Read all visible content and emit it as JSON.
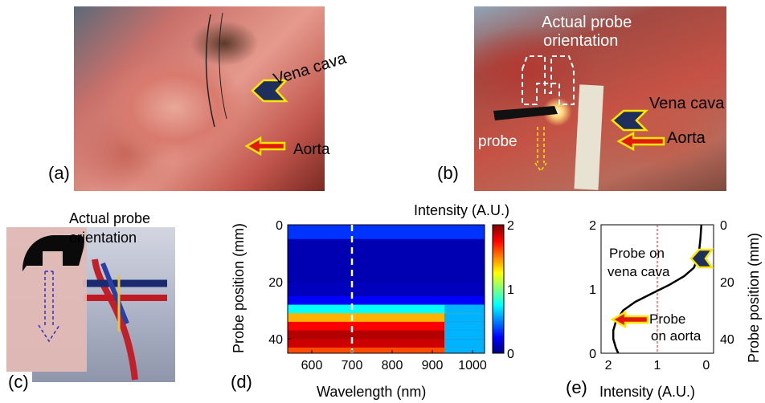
{
  "panels": {
    "a": {
      "label": "(a)",
      "annotations": {
        "vena_cava": "Vena cava",
        "aorta": "Aorta"
      }
    },
    "b": {
      "label": "(b)",
      "annotations": {
        "probe_orientation_line1": "Actual probe",
        "probe_orientation_line2": "orientation",
        "vena_cava": "Vena cava",
        "aorta": "Aorta",
        "probe": "probe"
      }
    },
    "c": {
      "label": "(c)",
      "annotations": {
        "probe_orientation_line1": "Actual probe",
        "probe_orientation_line2": "orientation"
      }
    },
    "d": {
      "label": "(d)"
    },
    "e": {
      "label": "(e)",
      "annotations": {
        "vena_line1": "Probe on",
        "vena_line2": "vena cava",
        "aorta_line1": "Probe",
        "aorta_line2": "on aorta"
      }
    }
  },
  "colors": {
    "chevron_fill": "#1f2f5c",
    "chevron_outline": "#ffe600",
    "arrow_fill": "#e11a10",
    "arrow_outline": "#ffe600"
  },
  "chart_data": [
    {
      "type": "heatmap",
      "panel": "d",
      "xlabel": "Wavelength (nm)",
      "ylabel": "Probe position (mm)",
      "colorbar_label": "Intensity (A.U.)",
      "x_ticks": [
        600,
        700,
        800,
        900,
        1000
      ],
      "y_ticks": [
        0,
        20,
        40
      ],
      "colorbar_ticks": [
        0,
        1,
        2
      ],
      "xlim": [
        540,
        1030
      ],
      "ylim": [
        0,
        45
      ],
      "clim": [
        0,
        2
      ],
      "marker_wavelength": 700,
      "row_positions": [
        0,
        5,
        10,
        15,
        20,
        25,
        28,
        31,
        34,
        37,
        40,
        43
      ],
      "row_intensity": [
        0.35,
        0.1,
        0.1,
        0.1,
        0.12,
        0.25,
        0.75,
        1.4,
        1.75,
        1.9,
        1.85,
        1.6
      ]
    },
    {
      "type": "line",
      "panel": "e",
      "xlabel": "Intensity (A.U.)",
      "ylabel": "Probe position (mm)",
      "x_ticks": [
        2,
        1,
        0
      ],
      "left_y_ticks": [
        0,
        1,
        2
      ],
      "right_y_ticks": [
        0,
        20,
        40
      ],
      "xlim": [
        2.15,
        -0.15
      ],
      "ylim": [
        0,
        45
      ],
      "reference_x": 1,
      "series": [
        {
          "x": [
            0.1,
            0.12,
            0.15,
            0.25,
            0.45,
            0.75,
            1.1,
            1.45,
            1.7,
            1.85,
            1.9,
            1.9,
            1.85,
            1.8
          ],
          "y": [
            0,
            5,
            10,
            15,
            18,
            21,
            24,
            27,
            30,
            34,
            37,
            40,
            43,
            45
          ]
        }
      ]
    }
  ]
}
